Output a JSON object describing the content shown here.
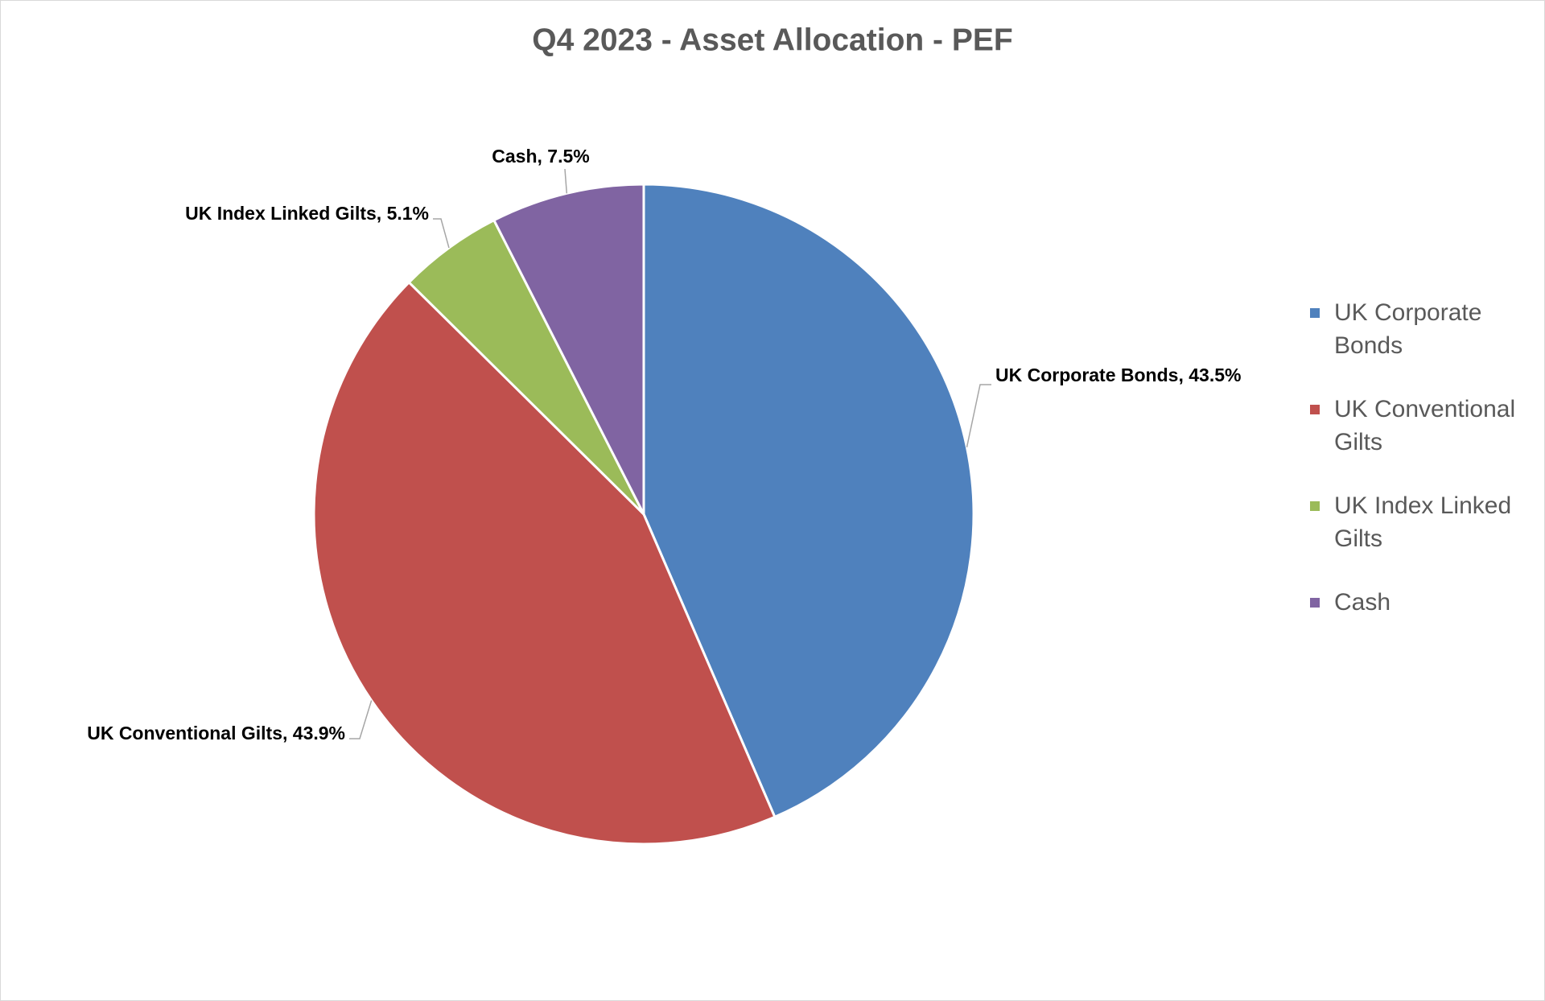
{
  "chart_data": {
    "type": "pie",
    "title": "Q4 2023 - Asset Allocation - PEF",
    "categories": [
      "UK Corporate Bonds",
      "UK Conventional Gilts",
      "UK Index Linked Gilts",
      "Cash"
    ],
    "values": [
      43.5,
      43.9,
      5.1,
      7.5
    ],
    "value_labels": [
      "UK Corporate Bonds, 43.5%",
      "UK Conventional Gilts, 43.9%",
      "UK Index Linked Gilts, 5.1%",
      "Cash, 7.5%"
    ],
    "colors": [
      "#4f81bd",
      "#c0504d",
      "#9bbb59",
      "#8064a2"
    ],
    "legend": "right"
  }
}
